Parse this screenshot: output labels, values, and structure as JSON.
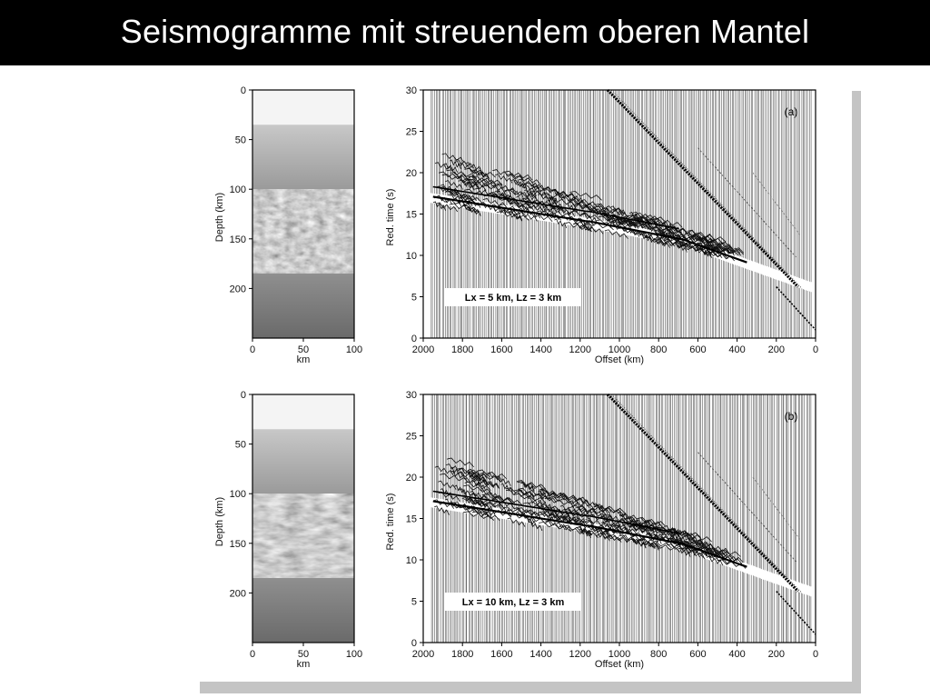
{
  "slide": {
    "title": "Seismogramme mit streuendem oberen Mantel"
  },
  "figure": {
    "panels": [
      {
        "id": "a",
        "label": "(a)",
        "annotation": "Lx = 5 km, Lz = 3 km",
        "model": {
          "ylabel": "Depth (km)",
          "xlabel": "km",
          "yticks": [
            "0",
            "50",
            "100",
            "150",
            "200"
          ],
          "xticks": [
            "0",
            "50",
            "100"
          ],
          "layers_km": [
            [
              0,
              35,
              "#f4f4f4"
            ],
            [
              35,
              100,
              "gradient"
            ],
            [
              100,
              185,
              "random"
            ],
            [
              185,
              250,
              "gradient-dark"
            ]
          ]
        },
        "seismogram": {
          "ylabel": "Red. time (s)",
          "xlabel": "Offset (km)",
          "yticks": [
            "0",
            "5",
            "10",
            "15",
            "20",
            "25",
            "30"
          ],
          "xticks": [
            "2000",
            "1800",
            "1600",
            "1400",
            "1200",
            "1000",
            "800",
            "600",
            "400",
            "200",
            "0"
          ]
        }
      },
      {
        "id": "b",
        "label": "(b)",
        "annotation": "Lx = 10 km, Lz = 3 km",
        "model": {
          "ylabel": "Depth (km)",
          "xlabel": "km",
          "yticks": [
            "0",
            "50",
            "100",
            "150",
            "200"
          ],
          "xticks": [
            "0",
            "50",
            "100"
          ],
          "layers_km": [
            [
              0,
              35,
              "#f4f4f4"
            ],
            [
              35,
              100,
              "gradient"
            ],
            [
              100,
              185,
              "random"
            ],
            [
              185,
              250,
              "gradient-dark"
            ]
          ]
        },
        "seismogram": {
          "ylabel": "Red. time (s)",
          "xlabel": "Offset (km)",
          "yticks": [
            "0",
            "5",
            "10",
            "15",
            "20",
            "25",
            "30"
          ],
          "xticks": [
            "2000",
            "1800",
            "1600",
            "1400",
            "1200",
            "1000",
            "800",
            "600",
            "400",
            "200",
            "0"
          ]
        }
      }
    ]
  }
}
